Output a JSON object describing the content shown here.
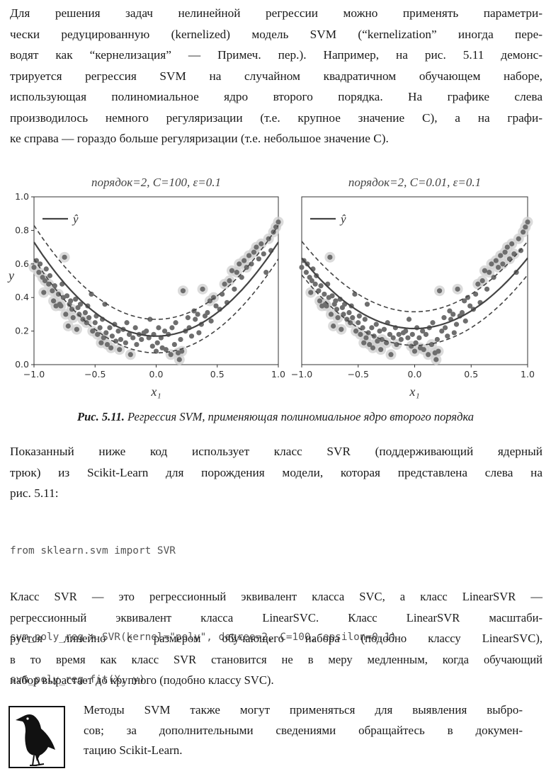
{
  "paragraph1": {
    "lines": [
      "Для решения задач нелинейной регрессии можно применять параметри-",
      "чески редуцированную (kernelized) модель SVM (“kernelization” иногда пере-",
      "водят как “кернелизация” — Примеч. пер.). Например, на рис. 5.11 демонс-",
      "трируется регрессия SVM на случайном квадратичном обучающем наборе,",
      "использующая полиномиальное ядро второго порядка. На графике слева",
      "производилось немного регуляризации (т.е. крупное значение C), а на графи-",
      "ке справа — гораздо больше регуляризации (т.е. небольшое значение C)."
    ]
  },
  "chart_data": [
    {
      "type": "scatter",
      "title": "порядок=2, C=100, ε=0.1",
      "xlabel": "x₁",
      "ylabel": "y",
      "xlim": [
        -1.0,
        1.0
      ],
      "ylim": [
        0.0,
        1.0
      ],
      "xticks": [
        "−1.0",
        "−0.5",
        "0.0",
        "0.5",
        "1.0"
      ],
      "yticks": [
        "0.0",
        "0.2",
        "0.4",
        "0.6",
        "0.8",
        "1.0"
      ],
      "legend": {
        "label": "ŷ",
        "position": "top-left"
      },
      "curve": {
        "a": 0.56,
        "b": 0.0,
        "c": 0.17
      },
      "epsilon": 0.1
    },
    {
      "type": "scatter",
      "title": "порядок=2, C=0.01, ε=0.1",
      "xlabel": "x₁",
      "ylabel": "",
      "xlim": [
        -1.0,
        1.0
      ],
      "ylim": [
        0.0,
        1.0
      ],
      "xticks": [
        "−1.0",
        "−0.5",
        "0.0",
        "0.5",
        "1.0"
      ],
      "yticks": [],
      "legend": {
        "label": "ŷ",
        "position": "top-left"
      },
      "curve": {
        "a": 0.42,
        "b": 0.0,
        "c": 0.215
      },
      "epsilon": 0.1
    }
  ],
  "points": [
    [
      -1.0,
      0.58
    ],
    [
      -0.98,
      0.62
    ],
    [
      -0.96,
      0.55
    ],
    [
      -0.95,
      0.6
    ],
    [
      -0.93,
      0.52
    ],
    [
      -0.92,
      0.43
    ],
    [
      -0.91,
      0.5
    ],
    [
      -0.9,
      0.57
    ],
    [
      -0.88,
      0.48
    ],
    [
      -0.87,
      0.53
    ],
    [
      -0.85,
      0.44
    ],
    [
      -0.84,
      0.38
    ],
    [
      -0.83,
      0.47
    ],
    [
      -0.82,
      0.35
    ],
    [
      -0.8,
      0.42
    ],
    [
      -0.79,
      0.36
    ],
    [
      -0.78,
      0.35
    ],
    [
      -0.77,
      0.48
    ],
    [
      -0.76,
      0.4
    ],
    [
      -0.75,
      0.64
    ],
    [
      -0.74,
      0.3
    ],
    [
      -0.73,
      0.41
    ],
    [
      -0.72,
      0.23
    ],
    [
      -0.71,
      0.36
    ],
    [
      -0.7,
      0.38
    ],
    [
      -0.69,
      0.33
    ],
    [
      -0.68,
      0.28
    ],
    [
      -0.66,
      0.39
    ],
    [
      -0.65,
      0.21
    ],
    [
      -0.64,
      0.34
    ],
    [
      -0.63,
      0.3
    ],
    [
      -0.62,
      0.36
    ],
    [
      -0.6,
      0.27
    ],
    [
      -0.58,
      0.31
    ],
    [
      -0.57,
      0.25
    ],
    [
      -0.56,
      0.35
    ],
    [
      -0.55,
      0.28
    ],
    [
      -0.53,
      0.42
    ],
    [
      -0.52,
      0.2
    ],
    [
      -0.5,
      0.25
    ],
    [
      -0.49,
      0.29
    ],
    [
      -0.48,
      0.18
    ],
    [
      -0.46,
      0.22
    ],
    [
      -0.45,
      0.13
    ],
    [
      -0.44,
      0.27
    ],
    [
      -0.43,
      0.16
    ],
    [
      -0.42,
      0.36
    ],
    [
      -0.41,
      0.19
    ],
    [
      -0.4,
      0.12
    ],
    [
      -0.38,
      0.22
    ],
    [
      -0.37,
      0.1
    ],
    [
      -0.36,
      0.17
    ],
    [
      -0.34,
      0.24
    ],
    [
      -0.33,
      0.14
    ],
    [
      -0.31,
      0.2
    ],
    [
      -0.3,
      0.09
    ],
    [
      -0.29,
      0.15
    ],
    [
      -0.27,
      0.21
    ],
    [
      -0.25,
      0.13
    ],
    [
      -0.24,
      0.25
    ],
    [
      -0.22,
      0.18
    ],
    [
      -0.21,
      0.06
    ],
    [
      -0.19,
      0.16
    ],
    [
      -0.17,
      0.22
    ],
    [
      -0.16,
      0.12
    ],
    [
      -0.14,
      0.18
    ],
    [
      -0.12,
      0.15
    ],
    [
      -0.1,
      0.19
    ],
    [
      -0.08,
      0.2
    ],
    [
      -0.06,
      0.16
    ],
    [
      -0.05,
      0.27
    ],
    [
      -0.03,
      0.11
    ],
    [
      -0.02,
      0.18
    ],
    [
      0.0,
      0.08
    ],
    [
      0.01,
      0.13
    ],
    [
      0.02,
      0.22
    ],
    [
      0.04,
      0.16
    ],
    [
      0.05,
      0.1
    ],
    [
      0.07,
      0.2
    ],
    [
      0.08,
      0.09
    ],
    [
      0.1,
      0.18
    ],
    [
      0.12,
      0.06
    ],
    [
      0.13,
      0.22
    ],
    [
      0.15,
      0.12
    ],
    [
      0.16,
      0.25
    ],
    [
      0.18,
      0.07
    ],
    [
      0.19,
      0.03
    ],
    [
      0.2,
      0.15
    ],
    [
      0.21,
      0.08
    ],
    [
      0.22,
      0.44
    ],
    [
      0.24,
      0.2
    ],
    [
      0.26,
      0.28
    ],
    [
      0.27,
      0.22
    ],
    [
      0.29,
      0.17
    ],
    [
      0.31,
      0.32
    ],
    [
      0.32,
      0.27
    ],
    [
      0.34,
      0.3
    ],
    [
      0.35,
      0.19
    ],
    [
      0.37,
      0.24
    ],
    [
      0.38,
      0.45
    ],
    [
      0.4,
      0.29
    ],
    [
      0.42,
      0.31
    ],
    [
      0.44,
      0.38
    ],
    [
      0.45,
      0.26
    ],
    [
      0.47,
      0.4
    ],
    [
      0.49,
      0.35
    ],
    [
      0.52,
      0.33
    ],
    [
      0.54,
      0.42
    ],
    [
      0.56,
      0.48
    ],
    [
      0.58,
      0.37
    ],
    [
      0.6,
      0.5
    ],
    [
      0.62,
      0.56
    ],
    [
      0.64,
      0.45
    ],
    [
      0.66,
      0.55
    ],
    [
      0.68,
      0.6
    ],
    [
      0.7,
      0.52
    ],
    [
      0.72,
      0.62
    ],
    [
      0.74,
      0.58
    ],
    [
      0.76,
      0.65
    ],
    [
      0.78,
      0.6
    ],
    [
      0.8,
      0.67
    ],
    [
      0.82,
      0.7
    ],
    [
      0.84,
      0.63
    ],
    [
      0.86,
      0.72
    ],
    [
      0.88,
      0.66
    ],
    [
      0.9,
      0.55
    ],
    [
      0.92,
      0.75
    ],
    [
      0.94,
      0.68
    ],
    [
      0.96,
      0.79
    ],
    [
      0.98,
      0.82
    ],
    [
      1.0,
      0.85
    ]
  ],
  "caption": {
    "label": "Рис. 5.11.",
    "text": " Регрессия SVM, применяющая полиномиальное ядро второго порядка"
  },
  "paragraph2": {
    "lines": [
      "Показанный ниже код использует класс SVR (поддерживающий ядерный",
      "трюк) из Scikit-Learn для порождения модели, которая представлена слева на",
      "рис. 5.11:"
    ]
  },
  "code": {
    "line1": "from sklearn.svm import SVR",
    "line2": "svm_poly_reg = SVR(kernel=\"poly\", degree=2, C=100, epsilon=0.1)",
    "line3": "svm_poly_reg.fit(X, y)"
  },
  "paragraph3": {
    "lines": [
      "Класс SVR — это регрессионный эквивалент класса SVC, а класс LinearSVR —",
      "регрессионный эквивалент класса LinearSVC. Класс LinearSVR масштаби-",
      "руется линейно с размером обучающего набора (подобно классу LinearSVC),",
      "в то время как класс SVR становится не в меру медленным, когда обучающий",
      "набор вырастает до крупного (подобно классу SVC)."
    ]
  },
  "note": {
    "lines": [
      "Методы SVM также могут применяться для выявления выбро-",
      "сов; за дополнительными сведениями обращайтесь в докумен-",
      "тацию Scikit-Learn."
    ]
  }
}
